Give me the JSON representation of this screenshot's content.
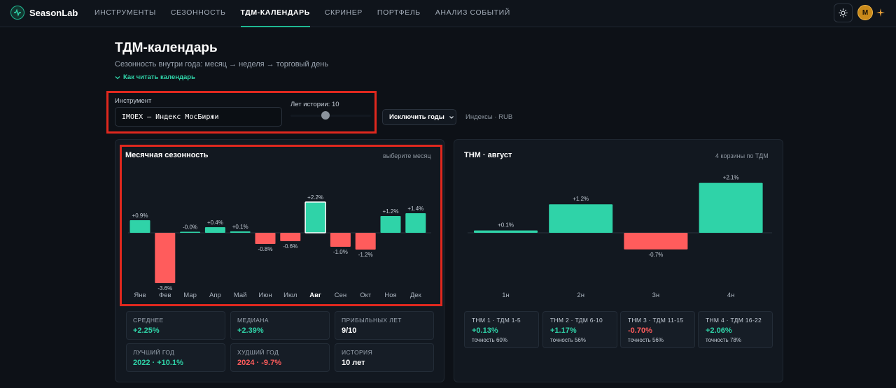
{
  "app": {
    "name": "SeasonLab"
  },
  "nav": {
    "items": [
      {
        "label": "ИНСТРУМЕНТЫ",
        "active": false
      },
      {
        "label": "СЕЗОННОСТЬ",
        "active": false
      },
      {
        "label": "ТДМ-КАЛЕНДАРЬ",
        "active": true
      },
      {
        "label": "СКРИНЕР",
        "active": false
      },
      {
        "label": "ПОРТФЕЛЬ",
        "active": false
      },
      {
        "label": "АНАЛИЗ СОБЫТИЙ",
        "active": false
      }
    ],
    "avatar_letter": "M"
  },
  "page": {
    "title": "ТДМ-календарь",
    "subtitle": "Сезонность внутри года: месяц → неделя → торговый день",
    "howto": "Как читать календарь"
  },
  "controls": {
    "instrument_label": "Инструмент",
    "instrument_value": "IMOEX — Индекс МосБиржи",
    "history_label": "Лет истории: 10",
    "exclude_label": "Исключить годы",
    "meta": "Индексы · RUB"
  },
  "colors": {
    "accent": "#2fd3a8",
    "negative": "#ff5c5c",
    "highlight": "#e0281e"
  },
  "monthly": {
    "title": "Месячная сезонность",
    "hint": "выберите месяц",
    "stats": [
      {
        "label": "СРЕДНЕЕ",
        "value": "+2.25%",
        "tone": "pos"
      },
      {
        "label": "МЕДИАНА",
        "value": "+2.39%",
        "tone": "pos"
      },
      {
        "label": "ПРИБЫЛЬНЫХ ЛЕТ",
        "value": "9/10",
        "tone": "white"
      },
      {
        "label": "ЛУЧШИЙ ГОД",
        "value": "2022 · +10.1%",
        "tone": "pos"
      },
      {
        "label": "ХУДШИЙ ГОД",
        "value": "2024 · -9.7%",
        "tone": "neg"
      },
      {
        "label": "ИСТОРИЯ",
        "value": "10 лет",
        "tone": "white"
      }
    ]
  },
  "tdm": {
    "title": "ТНМ · август",
    "hint": "4 корзины по ТДМ",
    "cards": [
      {
        "label": "ТНМ 1 · ТДМ 1-5",
        "value": "+0.13%",
        "tone": "pos",
        "accuracy": "точность 60%"
      },
      {
        "label": "ТНМ 2 · ТДМ 6-10",
        "value": "+1.17%",
        "tone": "pos",
        "accuracy": "точность 56%"
      },
      {
        "label": "ТНМ 3 · ТДМ 11-15",
        "value": "-0.70%",
        "tone": "neg",
        "accuracy": "точность 56%"
      },
      {
        "label": "ТНМ 4 · ТДМ 16-22",
        "value": "+2.06%",
        "tone": "pos",
        "accuracy": "точность 78%"
      }
    ]
  },
  "chart_data": [
    {
      "type": "bar",
      "title": "Месячная сезонность",
      "categories": [
        "Янв",
        "Фев",
        "Мар",
        "Апр",
        "Май",
        "Июн",
        "Июл",
        "Авг",
        "Сен",
        "Окт",
        "Ноя",
        "Дек"
      ],
      "values": [
        0.9,
        -3.6,
        -0.0,
        0.4,
        0.1,
        -0.8,
        -0.6,
        2.2,
        -1.0,
        -1.2,
        1.2,
        1.4
      ],
      "labels": [
        "+0.9%",
        "-3.6%",
        "-0.0%",
        "+0.4%",
        "+0.1%",
        "-0.8%",
        "-0.6%",
        "+2.2%",
        "-1.0%",
        "-1.2%",
        "+1.2%",
        "+1.4%"
      ],
      "selected": "Авг"
    },
    {
      "type": "bar",
      "title": "ТНМ · август",
      "categories": [
        "1н",
        "2н",
        "3н",
        "4н"
      ],
      "values": [
        0.1,
        1.2,
        -0.7,
        2.1
      ],
      "labels": [
        "+0.1%",
        "+1.2%",
        "-0.7%",
        "+2.1%"
      ]
    }
  ]
}
